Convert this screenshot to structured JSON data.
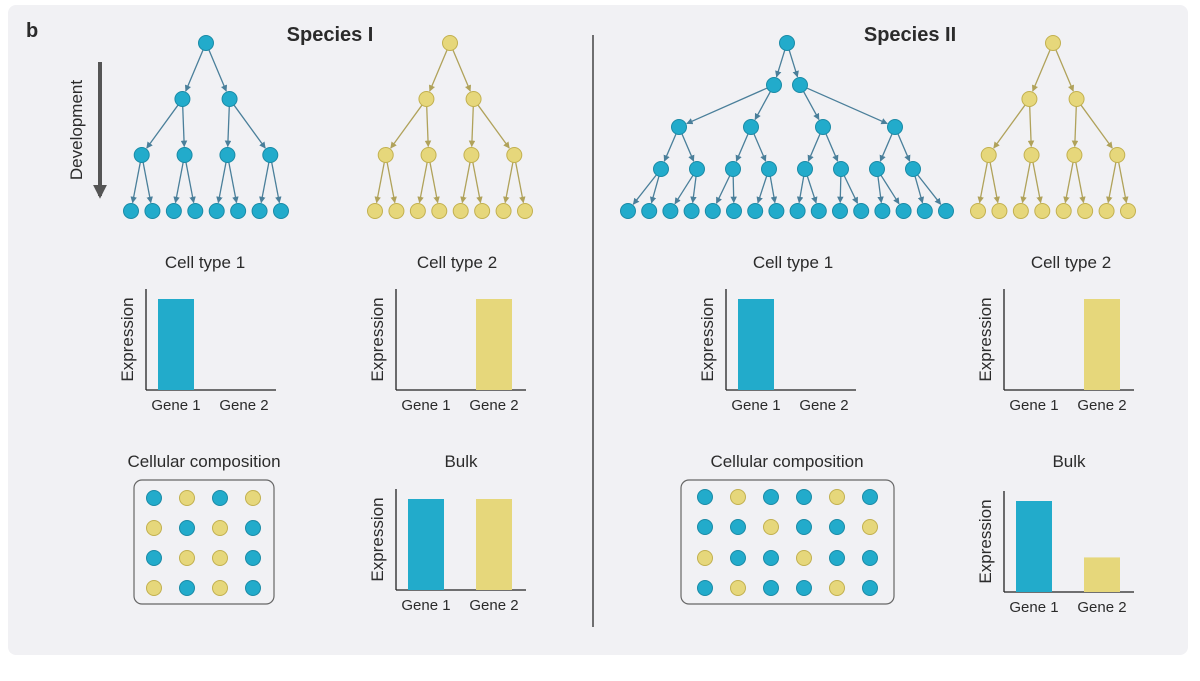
{
  "panel_label": "b",
  "development_label": "Development",
  "species": [
    {
      "title": "Species I",
      "tree_blue_leaves": 8,
      "tree_yellow_leaves": 8,
      "cell_type_1": {
        "title": "Cell type 1",
        "genes": [
          "Gene 1",
          "Gene 2"
        ],
        "ylabel": "Expression",
        "values": [
          1.0,
          0.0
        ]
      },
      "cell_type_2": {
        "title": "Cell type 2",
        "genes": [
          "Gene 1",
          "Gene 2"
        ],
        "ylabel": "Expression",
        "values": [
          0.0,
          1.0
        ]
      },
      "composition": {
        "title": "Cellular composition",
        "grid": [
          [
            "blue",
            "yellow",
            "blue",
            "yellow"
          ],
          [
            "yellow",
            "blue",
            "yellow",
            "blue"
          ],
          [
            "blue",
            "yellow",
            "yellow",
            "blue"
          ],
          [
            "yellow",
            "blue",
            "yellow",
            "blue"
          ]
        ]
      },
      "bulk": {
        "title": "Bulk",
        "genes": [
          "Gene 1",
          "Gene 2"
        ],
        "ylabel": "Expression",
        "values": [
          1.0,
          1.0
        ]
      }
    },
    {
      "title": "Species II",
      "tree_blue_leaves": 16,
      "tree_yellow_leaves": 8,
      "cell_type_1": {
        "title": "Cell type 1",
        "genes": [
          "Gene 1",
          "Gene 2"
        ],
        "ylabel": "Expression",
        "values": [
          1.0,
          0.0
        ]
      },
      "cell_type_2": {
        "title": "Cell type 2",
        "genes": [
          "Gene 1",
          "Gene 2"
        ],
        "ylabel": "Expression",
        "values": [
          0.0,
          1.0
        ]
      },
      "composition": {
        "title": "Cellular composition",
        "grid": [
          [
            "blue",
            "yellow",
            "blue",
            "blue",
            "yellow",
            "blue"
          ],
          [
            "blue",
            "blue",
            "yellow",
            "blue",
            "blue",
            "yellow"
          ],
          [
            "yellow",
            "blue",
            "blue",
            "yellow",
            "blue",
            "blue"
          ],
          [
            "blue",
            "yellow",
            "blue",
            "blue",
            "yellow",
            "blue"
          ]
        ]
      },
      "bulk": {
        "title": "Bulk",
        "genes": [
          "Gene 1",
          "Gene 2"
        ],
        "ylabel": "Expression",
        "values": [
          1.0,
          0.38
        ]
      }
    }
  ],
  "colors": {
    "blue": "#22abcb",
    "blue_stroke": "#1a8aa6",
    "blue_edge": "#4a7f9a",
    "yellow": "#e6d77b",
    "yellow_stroke": "#c2b04f",
    "yellow_edge": "#b0a25a",
    "axis": "#222222",
    "divider": "#444444",
    "box": "#666666"
  },
  "chart_data": [
    {
      "type": "bar",
      "title": "Cell type 1",
      "categories": [
        "Gene 1",
        "Gene 2"
      ],
      "series": [
        {
          "values": [
            1.0,
            0.0
          ]
        }
      ],
      "xlabel": "",
      "ylabel": "Expression"
    },
    {
      "type": "bar",
      "title": "Cell type 2",
      "categories": [
        "Gene 1",
        "Gene 2"
      ],
      "series": [
        {
          "values": [
            0.0,
            1.0
          ]
        }
      ],
      "xlabel": "",
      "ylabel": "Expression"
    },
    {
      "type": "bar",
      "title": "Bulk",
      "categories": [
        "Gene 1",
        "Gene 2"
      ],
      "series": [
        {
          "values": [
            1.0,
            1.0
          ]
        }
      ],
      "xlabel": "",
      "ylabel": "Expression"
    },
    {
      "type": "bar",
      "title": "Cell type 1",
      "categories": [
        "Gene 1",
        "Gene 2"
      ],
      "series": [
        {
          "values": [
            1.0,
            0.0
          ]
        }
      ],
      "xlabel": "",
      "ylabel": "Expression"
    },
    {
      "type": "bar",
      "title": "Cell type 2",
      "categories": [
        "Gene 1",
        "Gene 2"
      ],
      "series": [
        {
          "values": [
            0.0,
            1.0
          ]
        }
      ],
      "xlabel": "",
      "ylabel": "Expression"
    },
    {
      "type": "bar",
      "title": "Bulk",
      "categories": [
        "Gene 1",
        "Gene 2"
      ],
      "series": [
        {
          "values": [
            1.0,
            0.38
          ]
        }
      ],
      "xlabel": "",
      "ylabel": "Expression"
    }
  ]
}
